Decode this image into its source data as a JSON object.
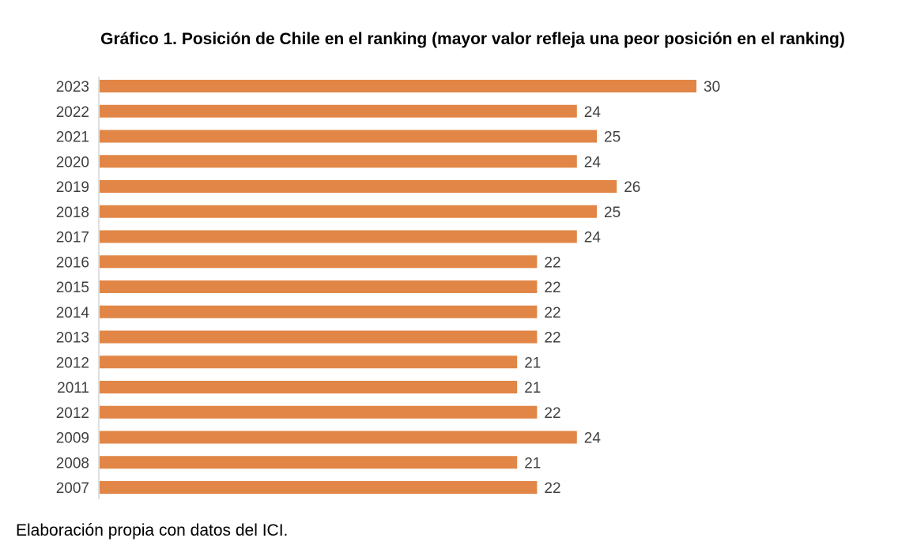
{
  "chart_data": {
    "type": "bar",
    "orientation": "horizontal",
    "title": "Gráfico 1. Posición de Chile en el ranking (mayor valor refleja una peor posición en el ranking)",
    "xlabel": "",
    "ylabel": "",
    "categories": [
      "2023",
      "2022",
      "2021",
      "2020",
      "2019",
      "2018",
      "2017",
      "2016",
      "2015",
      "2014",
      "2013",
      "2012",
      "2011",
      "2012",
      "2009",
      "2008",
      "2007"
    ],
    "values": [
      30,
      24,
      25,
      24,
      26,
      25,
      24,
      22,
      22,
      22,
      22,
      21,
      21,
      22,
      24,
      21,
      22
    ],
    "xlim": [
      0,
      30
    ],
    "grid": false,
    "legend": "none",
    "bar_color": "#E18646"
  },
  "footer": {
    "source": "Elaboración propia con datos del ICI."
  }
}
